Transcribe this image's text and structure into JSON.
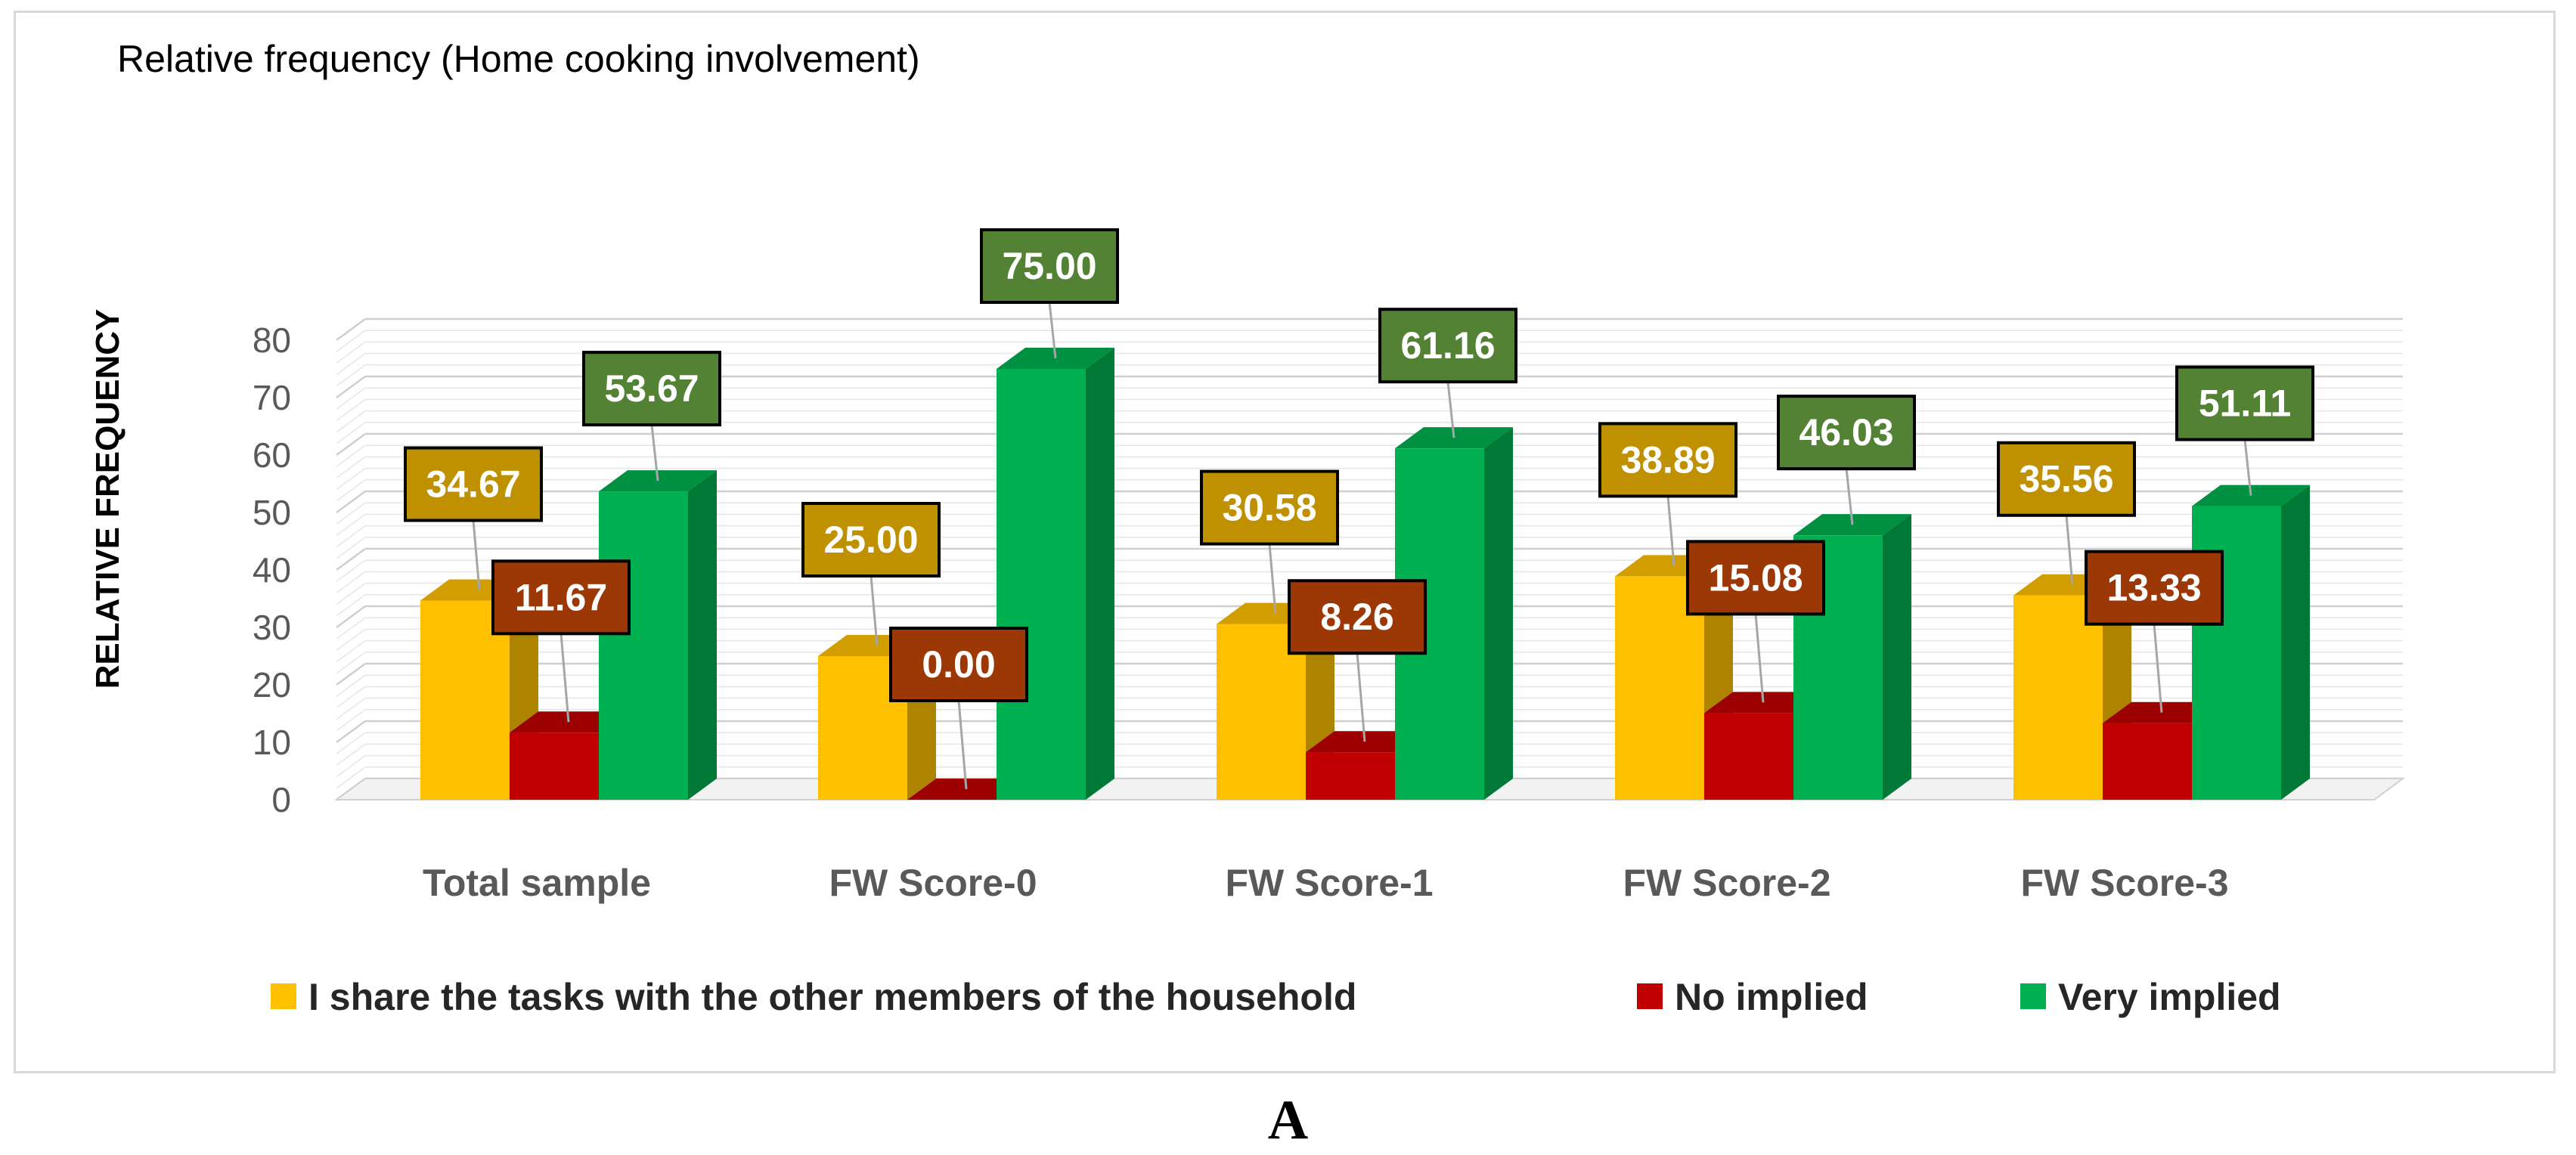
{
  "chart_data": {
    "type": "bar",
    "title": "Relative frequency (Home cooking involvement)",
    "xlabel": "",
    "ylabel": "RELATIVE FREQUENCY",
    "ylim": [
      0,
      80
    ],
    "yticks": [
      0,
      10,
      20,
      30,
      40,
      50,
      60,
      70,
      80
    ],
    "categories": [
      "Total sample",
      "FW Score-0",
      "FW Score-1",
      "FW Score-2",
      "FW Score-3"
    ],
    "series": [
      {
        "name": "I share the tasks with the other members of the household",
        "color": "#ffc000",
        "label_bg": "#bf9000",
        "values": [
          34.67,
          25.0,
          30.58,
          38.89,
          35.56
        ],
        "labels": [
          "34.67",
          "25.00",
          "30.58",
          "38.89",
          "35.56"
        ]
      },
      {
        "name": "No implied",
        "color": "#c00000",
        "label_bg": "#9c3806",
        "values": [
          11.67,
          0.0,
          8.26,
          15.08,
          13.33
        ],
        "labels": [
          "11.67",
          "0.00",
          "8.26",
          "15.08",
          "13.33"
        ]
      },
      {
        "name": "Very implied",
        "color": "#00b050",
        "label_bg": "#548235",
        "values": [
          53.67,
          75.0,
          61.16,
          46.03,
          51.11
        ],
        "labels": [
          "53.67",
          "75.00",
          "61.16",
          "46.03",
          "51.11"
        ]
      }
    ],
    "legend_position": "bottom",
    "grid": true,
    "style": "3d-clustered-column"
  },
  "figure_label": "A"
}
